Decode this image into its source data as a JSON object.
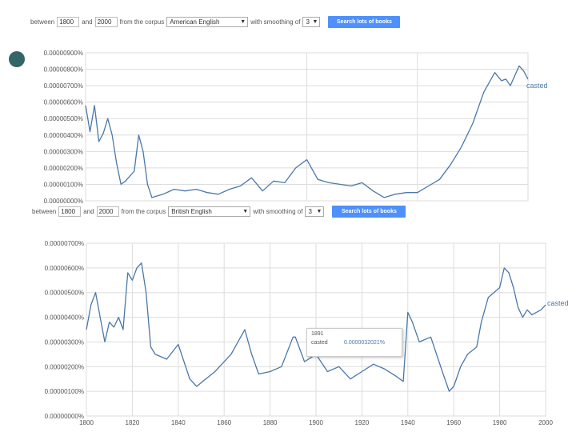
{
  "top_panel": {
    "between_label": "between",
    "year_start": "1800",
    "and_label": "and",
    "year_end": "2000",
    "corpus_label": "from the corpus",
    "corpus_value": "American English",
    "smoothing_label": "with smoothing of",
    "smoothing_value": "3",
    "search_button": "Search lots of books"
  },
  "bottom_panel": {
    "between_label": "between",
    "year_start": "1800",
    "and_label": "and",
    "year_end": "2000",
    "corpus_label": "from the corpus",
    "corpus_value": "British English",
    "smoothing_label": "with smoothing of",
    "smoothing_value": "3",
    "search_button": "Search lots of books"
  },
  "tooltip": {
    "year": "1891",
    "term": "casted",
    "value": "0.0000032021%"
  },
  "colors": {
    "line": "#4a78a8",
    "button": "#4d90fe",
    "dot": "#336666",
    "grid": "#dddddd"
  },
  "chart_data": [
    {
      "type": "line",
      "title": "",
      "xlabel": "",
      "ylabel": "",
      "series": [
        {
          "name": "casted"
        }
      ],
      "y_tick_labels": [
        "0.00000000%",
        "0.00000100%",
        "0.00000200%",
        "0.00000300%",
        "0.00000400%",
        "0.00000500%",
        "0.00000600%",
        "0.00000700%",
        "0.00000800%",
        "0.00000900%"
      ],
      "ylim": [
        0,
        9e-06
      ],
      "xlim": [
        1800,
        2000
      ],
      "grid": true,
      "x": [
        1800,
        1802,
        1804,
        1806,
        1808,
        1810,
        1812,
        1814,
        1816,
        1818,
        1820,
        1822,
        1824,
        1826,
        1828,
        1830,
        1835,
        1840,
        1845,
        1850,
        1855,
        1860,
        1865,
        1870,
        1875,
        1880,
        1885,
        1890,
        1895,
        1900,
        1905,
        1910,
        1915,
        1920,
        1925,
        1930,
        1935,
        1940,
        1945,
        1950,
        1955,
        1960,
        1965,
        1970,
        1975,
        1980,
        1985,
        1988,
        1990,
        1992,
        1994,
        1996,
        1998,
        2000
      ],
      "values": [
        5.8e-06,
        4.2e-06,
        5.8e-06,
        3.6e-06,
        4.1e-06,
        5e-06,
        4e-06,
        2.3e-06,
        1e-06,
        1.2e-06,
        1.5e-06,
        1.8e-06,
        4e-06,
        3e-06,
        1e-06,
        2e-07,
        4e-07,
        7e-07,
        6e-07,
        7e-07,
        5e-07,
        4e-07,
        7e-07,
        9e-07,
        1.4e-06,
        6e-07,
        1.2e-06,
        1.1e-06,
        2e-06,
        2.5e-06,
        1.3e-06,
        1.1e-06,
        1e-06,
        9e-07,
        1.1e-06,
        6e-07,
        2e-07,
        4e-07,
        5e-07,
        5e-07,
        9e-07,
        1.3e-06,
        2.2e-06,
        3.3e-06,
        4.7e-06,
        6.6e-06,
        7.8e-06,
        7.3e-06,
        7.4e-06,
        7e-06,
        7.6e-06,
        8.2e-06,
        7.9e-06,
        7.4e-06
      ]
    },
    {
      "type": "line",
      "title": "",
      "xlabel": "",
      "ylabel": "",
      "series": [
        {
          "name": "casted"
        }
      ],
      "y_tick_labels": [
        "0.00000000%",
        "0.00000100%",
        "0.00000200%",
        "0.00000300%",
        "0.00000400%",
        "0.00000500%",
        "0.00000600%",
        "0.00000700%"
      ],
      "ylim": [
        0,
        7e-06
      ],
      "xlim": [
        1800,
        2000
      ],
      "x_tick_labels": [
        "1800",
        "1820",
        "1840",
        "1860",
        "1880",
        "1900",
        "1920",
        "1940",
        "1960",
        "1980",
        "2000"
      ],
      "grid": true,
      "x": [
        1800,
        1802,
        1804,
        1806,
        1808,
        1810,
        1812,
        1814,
        1816,
        1818,
        1820,
        1822,
        1824,
        1826,
        1828,
        1830,
        1835,
        1840,
        1845,
        1848,
        1852,
        1856,
        1860,
        1863,
        1866,
        1869,
        1872,
        1875,
        1880,
        1885,
        1890,
        1891,
        1895,
        1900,
        1905,
        1910,
        1915,
        1920,
        1925,
        1930,
        1935,
        1938,
        1940,
        1942,
        1945,
        1950,
        1955,
        1958,
        1960,
        1963,
        1966,
        1970,
        1972,
        1975,
        1980,
        1982,
        1984,
        1986,
        1988,
        1990,
        1992,
        1994,
        1996,
        1998,
        2000
      ],
      "values": [
        3.5e-06,
        4.5e-06,
        5e-06,
        4e-06,
        3e-06,
        3.8e-06,
        3.6e-06,
        4e-06,
        3.5e-06,
        5.8e-06,
        5.5e-06,
        6e-06,
        6.2e-06,
        5e-06,
        2.8e-06,
        2.5e-06,
        2.3e-06,
        2.9e-06,
        1.5e-06,
        1.2e-06,
        1.5e-06,
        1.8e-06,
        2.2e-06,
        2.5e-06,
        3e-06,
        3.5e-06,
        2.5e-06,
        1.7e-06,
        1.8e-06,
        2e-06,
        3.2e-06,
        3.2e-06,
        2.2e-06,
        2.5e-06,
        1.8e-06,
        2e-06,
        1.5e-06,
        1.8e-06,
        2.1e-06,
        1.9e-06,
        1.6e-06,
        1.4e-06,
        4.2e-06,
        3.8e-06,
        3e-06,
        3.2e-06,
        1.8e-06,
        1e-06,
        1.2e-06,
        2e-06,
        2.5e-06,
        2.8e-06,
        3.8e-06,
        4.8e-06,
        5.2e-06,
        6e-06,
        5.8e-06,
        5.2e-06,
        4.4e-06,
        4e-06,
        4.3e-06,
        4.1e-06,
        4.2e-06,
        4.3e-06,
        4.5e-06
      ]
    }
  ]
}
